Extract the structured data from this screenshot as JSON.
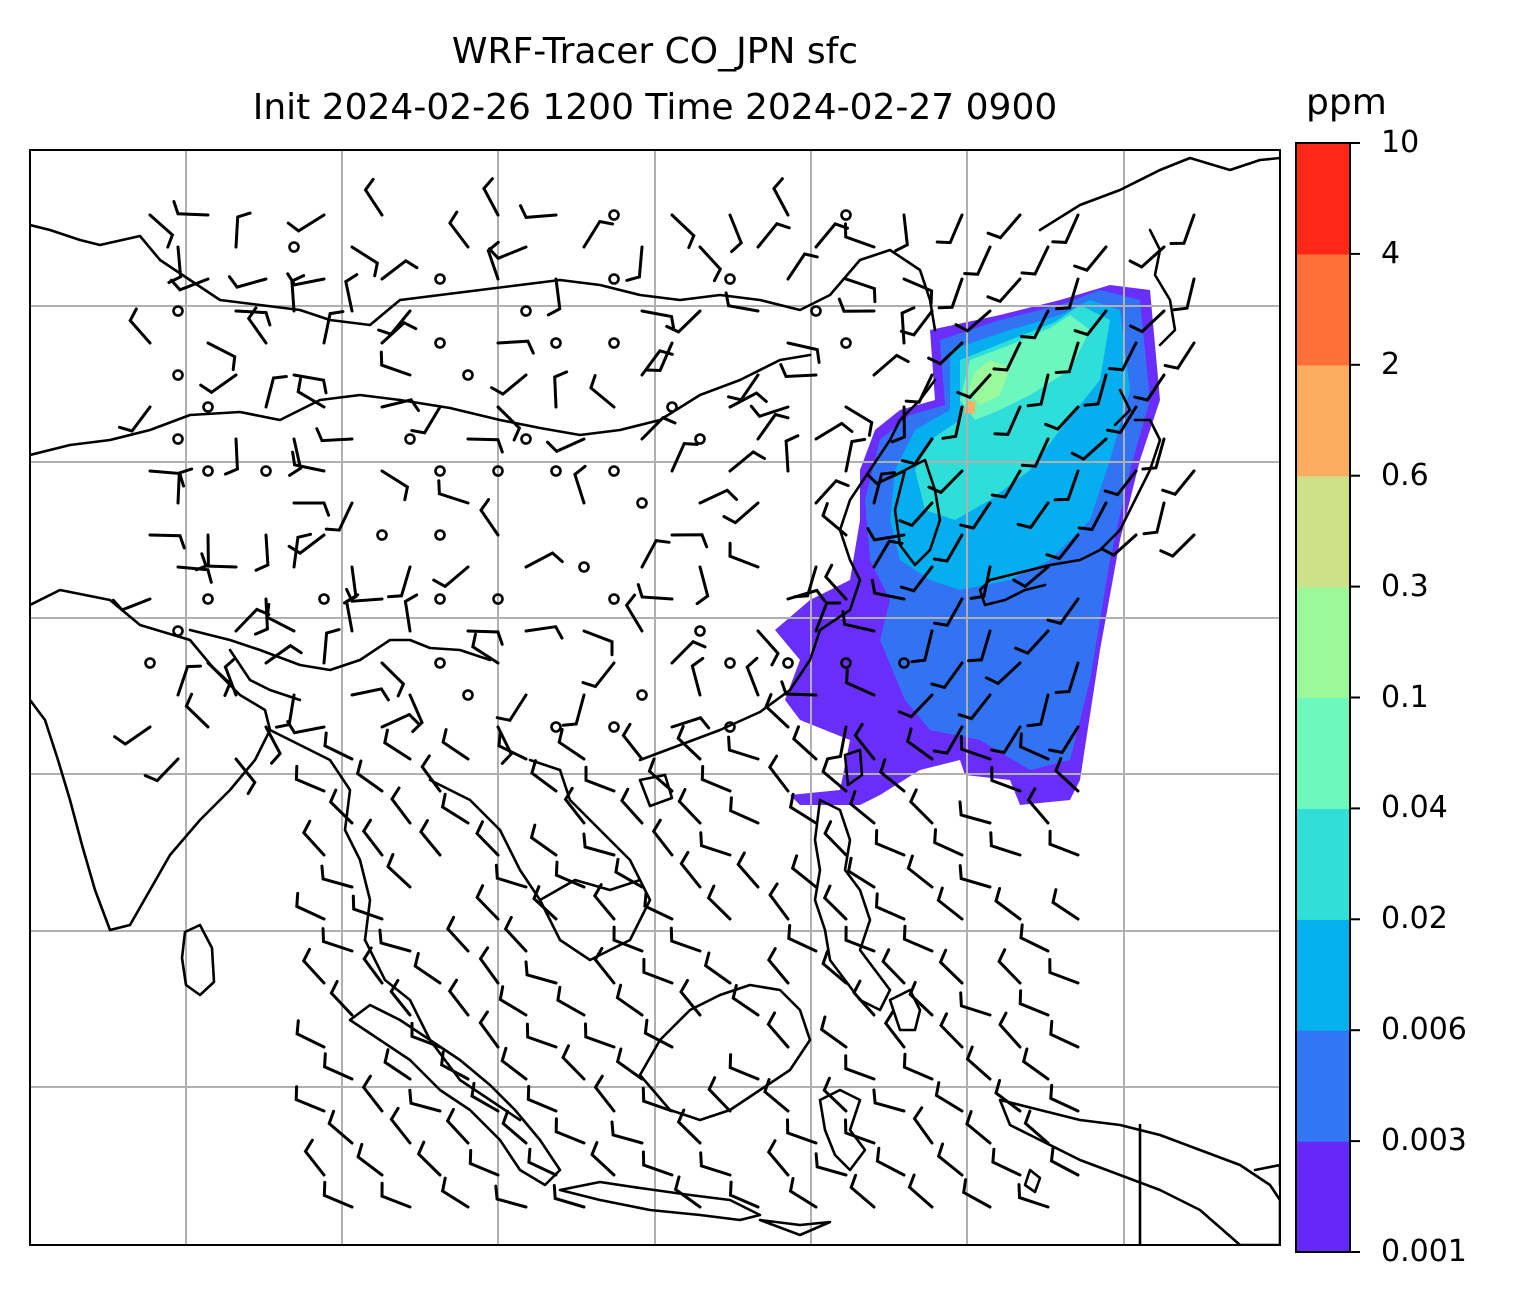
{
  "figure": {
    "title_line1": "WRF-Tracer CO_JPN sfc",
    "title_line2": "Init 2024-02-26 1200 Time 2024-02-27 0900"
  },
  "colorbar": {
    "unit": "ppm",
    "ticks": [
      "0.001",
      "0.003",
      "0.006",
      "0.02",
      "0.04",
      "0.1",
      "0.3",
      "0.6",
      "2",
      "4",
      "10"
    ],
    "colors": [
      "#6527fa",
      "#3176f4",
      "#04b0ee",
      "#31dfd8",
      "#6df8bc",
      "#9cf99a",
      "#cfe188",
      "#fdad60",
      "#ff7038",
      "#ff2717"
    ]
  },
  "map": {
    "domain": "East & Southeast Asia",
    "gridlines": true,
    "coastline_color": "#000000",
    "wind_barb_color": "#000000"
  }
}
